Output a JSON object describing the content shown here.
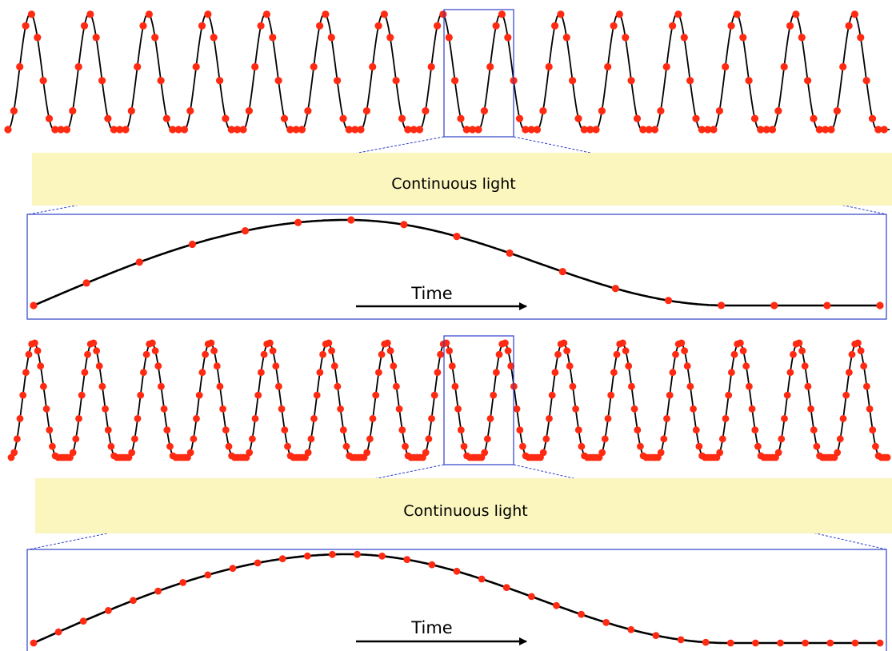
{
  "panels": [
    {
      "band_label": "Continuous light",
      "zoom_label": "Time",
      "sampling": "sparse"
    },
    {
      "band_label": "Continuous light",
      "zoom_label": "Time",
      "sampling": "dense"
    }
  ],
  "colors": {
    "curve": "#000000",
    "sample_point": "#ff2a12",
    "band_fill": "#fbf5be",
    "frame": "#2e3fc7",
    "background": "#ffffff"
  }
}
